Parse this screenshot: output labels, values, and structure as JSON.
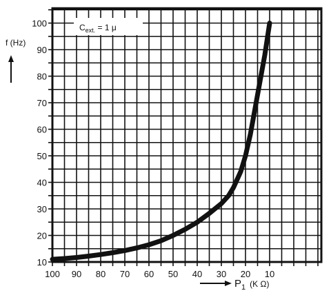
{
  "chart_data": {
    "type": "line",
    "title": "",
    "annotation": {
      "text": "C",
      "sub": "ext.",
      "rest": " = 1 μ"
    },
    "ylabel": "f (Hz)",
    "xlabel": {
      "symbol": "P",
      "sub": "1",
      "unit": "(K Ω)"
    },
    "x_direction": "reversed",
    "xlim": [
      100,
      0
    ],
    "ylim": [
      10,
      100
    ],
    "x_tick_labels": [
      "100",
      "90",
      "80",
      "70",
      "60",
      "50",
      "40",
      "30",
      "20",
      "10"
    ],
    "x_tick_values": [
      100,
      90,
      80,
      70,
      60,
      50,
      40,
      30,
      20,
      10
    ],
    "y_tick_labels": [
      "10",
      "20",
      "30",
      "40",
      "50",
      "60",
      "70",
      "80",
      "90",
      "100"
    ],
    "y_tick_values": [
      10,
      20,
      30,
      40,
      50,
      60,
      70,
      80,
      90,
      100
    ],
    "grid": true,
    "series": [
      {
        "x": [
          100,
          95,
          90,
          85,
          80,
          75,
          70,
          65,
          60,
          55,
          50,
          45,
          40,
          35,
          30,
          27,
          25,
          22,
          20,
          18,
          16,
          14,
          12,
          11,
          10
        ],
        "y": [
          11,
          11.3,
          11.7,
          12.2,
          12.8,
          13.5,
          14.3,
          15.3,
          16.5,
          18,
          20,
          22.3,
          25,
          28.3,
          32,
          35,
          38,
          44,
          50,
          58,
          68,
          78,
          88,
          94,
          100
        ]
      }
    ],
    "colors": {
      "line": "#111111",
      "grid": "#111111",
      "background": "#ffffff"
    }
  }
}
